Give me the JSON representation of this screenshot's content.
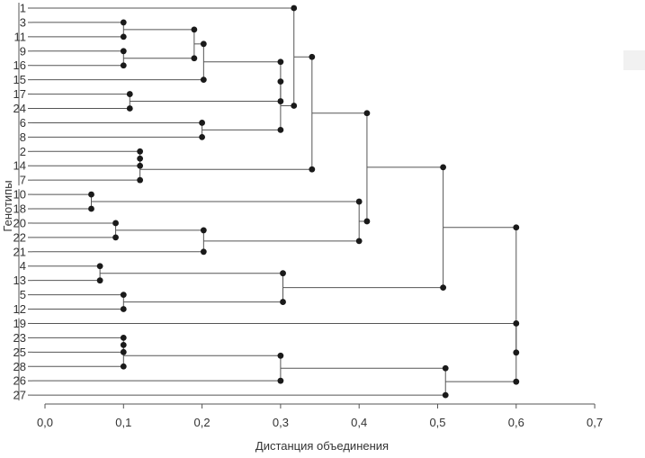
{
  "chart_data": {
    "type": "dendrogram",
    "title": "",
    "xlabel": "Дистанция объединения",
    "ylabel": "Генотипы",
    "xlim": [
      0,
      0.7
    ],
    "x_ticks": [
      "0,0",
      "0,1",
      "0,2",
      "0,3",
      "0,4",
      "0,5",
      "0,6",
      "0,7"
    ],
    "leaf_order": [
      "1",
      "3",
      "11",
      "9",
      "16",
      "15",
      "17",
      "24",
      "6",
      "8",
      "2",
      "14",
      "7",
      "10",
      "18",
      "20",
      "22",
      "21",
      "4",
      "13",
      "5",
      "12",
      "19",
      "23",
      "25",
      "28",
      "26",
      "27"
    ],
    "merges": [
      {
        "id": "m1",
        "children": [
          "10",
          "18"
        ],
        "height": 0.059
      },
      {
        "id": "m2",
        "children": [
          "4",
          "13"
        ],
        "height": 0.07
      },
      {
        "id": "m3",
        "children": [
          "20",
          "22"
        ],
        "height": 0.09
      },
      {
        "id": "m4",
        "children": [
          "3",
          "11"
        ],
        "height": 0.1
      },
      {
        "id": "m5",
        "children": [
          "9",
          "16"
        ],
        "height": 0.1
      },
      {
        "id": "m6",
        "children": [
          "5",
          "12"
        ],
        "height": 0.1
      },
      {
        "id": "m7",
        "children": [
          "23",
          "25"
        ],
        "height": 0.1
      },
      {
        "id": "m8",
        "children": [
          "m7",
          "28"
        ],
        "height": 0.1
      },
      {
        "id": "m9",
        "children": [
          "17",
          "24"
        ],
        "height": 0.108
      },
      {
        "id": "m10",
        "children": [
          "2",
          "14"
        ],
        "height": 0.121
      },
      {
        "id": "m11",
        "children": [
          "m10",
          "7"
        ],
        "height": 0.121
      },
      {
        "id": "m12",
        "children": [
          "m4",
          "m5"
        ],
        "height": 0.19
      },
      {
        "id": "m13",
        "children": [
          "6",
          "8"
        ],
        "height": 0.2
      },
      {
        "id": "m14",
        "children": [
          "m12",
          "15"
        ],
        "height": 0.202
      },
      {
        "id": "m15",
        "children": [
          "m3",
          "21"
        ],
        "height": 0.202
      },
      {
        "id": "m16",
        "children": [
          "m14",
          "m9"
        ],
        "height": 0.3
      },
      {
        "id": "m17",
        "children": [
          "m16",
          "m13"
        ],
        "height": 0.3
      },
      {
        "id": "m18",
        "children": [
          "m2",
          "m6"
        ],
        "height": 0.303
      },
      {
        "id": "m19",
        "children": [
          "m8",
          "26"
        ],
        "height": 0.3
      },
      {
        "id": "m20",
        "children": [
          "1",
          "m17"
        ],
        "height": 0.317
      },
      {
        "id": "m21",
        "children": [
          "m20",
          "m11"
        ],
        "height": 0.34
      },
      {
        "id": "m22",
        "children": [
          "m1",
          "m15"
        ],
        "height": 0.4
      },
      {
        "id": "m23",
        "children": [
          "m21",
          "m22"
        ],
        "height": 0.41
      },
      {
        "id": "m24",
        "children": [
          "m23",
          "m18"
        ],
        "height": 0.507
      },
      {
        "id": "m25",
        "children": [
          "m19",
          "27"
        ],
        "height": 0.51
      },
      {
        "id": "m26",
        "children": [
          "19",
          "m25"
        ],
        "height": 0.6
      },
      {
        "id": "m27",
        "children": [
          "m24",
          "m26"
        ],
        "height": 0.6
      }
    ],
    "group_separators_after": [
      "7",
      "12"
    ],
    "colors": {
      "branch": "#555555",
      "node": "#1a1a1a",
      "text": "#333333"
    }
  }
}
